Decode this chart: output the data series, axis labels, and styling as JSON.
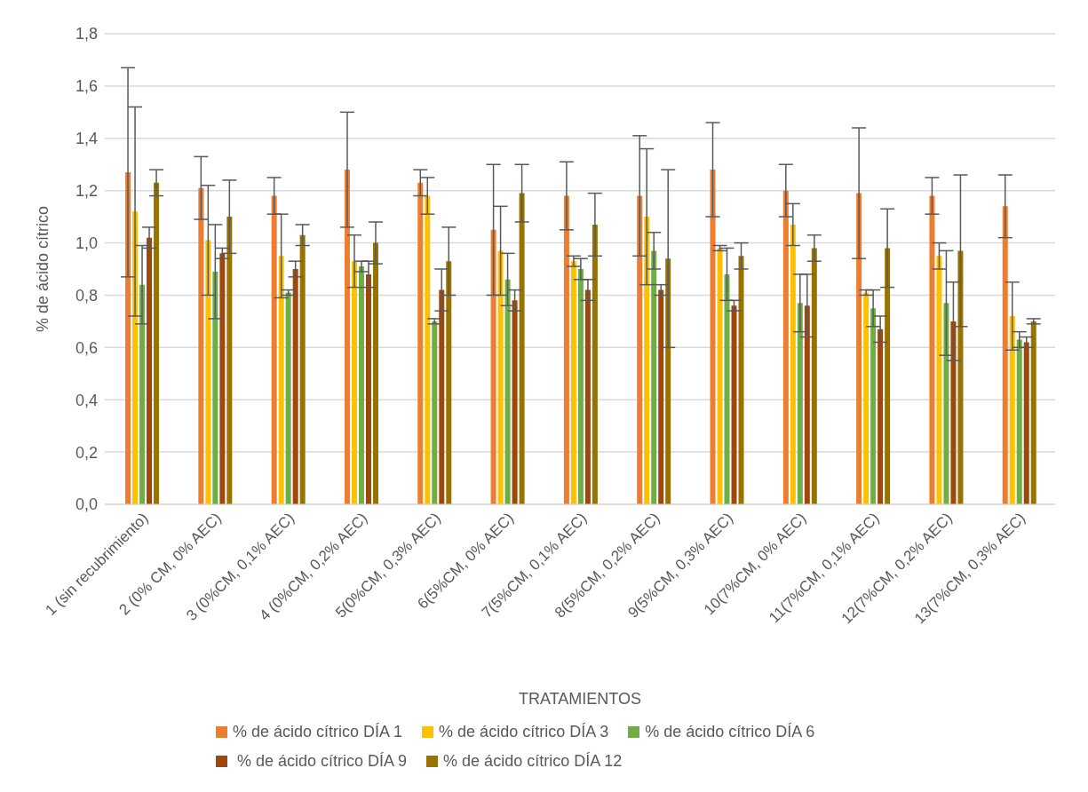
{
  "chart_data": {
    "type": "bar",
    "xlabel": "TRATAMIENTOS",
    "ylabel": "% de ácido cítrico",
    "categories": [
      "1 (sin recubrimiento)",
      "2 (0% CM, 0% AEC)",
      "3 (0%CM, 0,1% AEC)",
      "4 (0%CM, 0,2% AEC)",
      "5(0%CM, 0,3% AEC)",
      "6(5%CM, 0% AEC)",
      "7(5%CM, 0,1% AEC)",
      "8(5%CM, 0,2% AEC)",
      "9(5%CM, 0,3% AEC)",
      "10(7%CM, 0% AEC)",
      "11(7%CM, 0,1% AEC)",
      "12(7%CM, 0,2% AEC)",
      "13(7%CM, 0,3% AEC)"
    ],
    "series": [
      {
        "name": "% de ácido cítrico DÍA 1",
        "color": "#ed7d31",
        "values": [
          1.27,
          1.21,
          1.18,
          1.28,
          1.23,
          1.05,
          1.18,
          1.18,
          1.28,
          1.2,
          1.19,
          1.18,
          1.14
        ],
        "errors": [
          0.4,
          0.12,
          0.07,
          0.22,
          0.05,
          0.25,
          0.13,
          0.23,
          0.18,
          0.1,
          0.25,
          0.07,
          0.12
        ]
      },
      {
        "name": "% de ácido cítrico DÍA 3",
        "color": "#ffc000",
        "values": [
          1.12,
          1.01,
          0.95,
          0.93,
          1.18,
          0.97,
          0.93,
          1.1,
          0.98,
          1.07,
          0.81,
          0.95,
          0.72
        ],
        "errors": [
          0.4,
          0.21,
          0.16,
          0.1,
          0.07,
          0.17,
          0.02,
          0.26,
          0.01,
          0.08,
          0.01,
          0.05,
          0.13
        ]
      },
      {
        "name": "% de ácido cítrico DÍA 6",
        "color": "#70ad47",
        "values": [
          0.84,
          0.89,
          0.81,
          0.91,
          0.7,
          0.86,
          0.9,
          0.97,
          0.88,
          0.77,
          0.75,
          0.77,
          0.63
        ],
        "errors": [
          0.15,
          0.18,
          0.01,
          0.02,
          0.01,
          0.1,
          0.04,
          0.07,
          0.1,
          0.11,
          0.07,
          0.2,
          0.03
        ]
      },
      {
        "name": " % de ácido cítrico DÍA 9",
        "color": "#9e480e",
        "values": [
          1.02,
          0.96,
          0.9,
          0.88,
          0.82,
          0.78,
          0.82,
          0.82,
          0.76,
          0.76,
          0.67,
          0.7,
          0.62
        ],
        "errors": [
          0.04,
          0.02,
          0.03,
          0.05,
          0.08,
          0.04,
          0.04,
          0.02,
          0.02,
          0.12,
          0.05,
          0.15,
          0.02
        ]
      },
      {
        "name": "% de ácido cítrico DÍA 12",
        "color": "#997300",
        "values": [
          1.23,
          1.1,
          1.03,
          1.0,
          0.93,
          1.19,
          1.07,
          0.94,
          0.95,
          0.98,
          0.98,
          0.97,
          0.7
        ],
        "errors": [
          0.05,
          0.14,
          0.04,
          0.08,
          0.13,
          0.11,
          0.12,
          0.34,
          0.05,
          0.05,
          0.15,
          0.29,
          0.01
        ]
      }
    ],
    "ylim": [
      0,
      1.8
    ],
    "yticks": [
      {
        "value": 0,
        "label": "0,0"
      },
      {
        "value": 0.2,
        "label": "0,2"
      },
      {
        "value": 0.4,
        "label": "0,4"
      },
      {
        "value": 0.6,
        "label": "0,6"
      },
      {
        "value": 0.8,
        "label": "0,8"
      },
      {
        "value": 1,
        "label": "1,0"
      },
      {
        "value": 1.2,
        "label": "1,2"
      },
      {
        "value": 1.4,
        "label": "1,4"
      },
      {
        "value": 1.6,
        "label": "1,6"
      },
      {
        "value": 1.8,
        "label": "1,8"
      }
    ],
    "grid": "y",
    "legend": "bottom"
  }
}
